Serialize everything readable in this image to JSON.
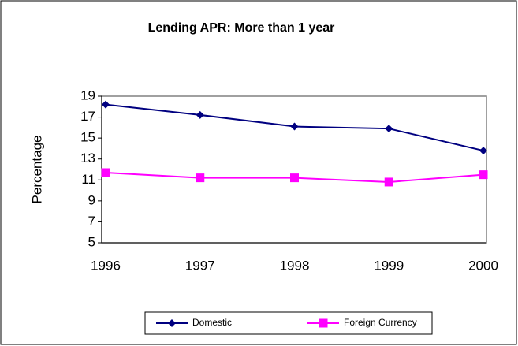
{
  "chart_data": {
    "type": "line",
    "title": "Lending APR: More than 1 year",
    "y_label": "Percentage",
    "categories": [
      "1996",
      "1997",
      "1998",
      "1999",
      "2000"
    ],
    "series": [
      {
        "name": "Domestic",
        "color": "#000080",
        "marker": "diamond",
        "values": [
          18.2,
          17.2,
          16.1,
          15.9,
          13.8
        ]
      },
      {
        "name": "Foreign Currency",
        "color": "#ff00ff",
        "marker": "square",
        "values": [
          11.7,
          11.2,
          11.2,
          10.8,
          11.5
        ]
      }
    ],
    "ylim": [
      5,
      19
    ],
    "yticks": [
      5,
      7,
      9,
      11,
      13,
      15,
      17,
      19
    ],
    "grid": false,
    "legend": "bottom"
  }
}
